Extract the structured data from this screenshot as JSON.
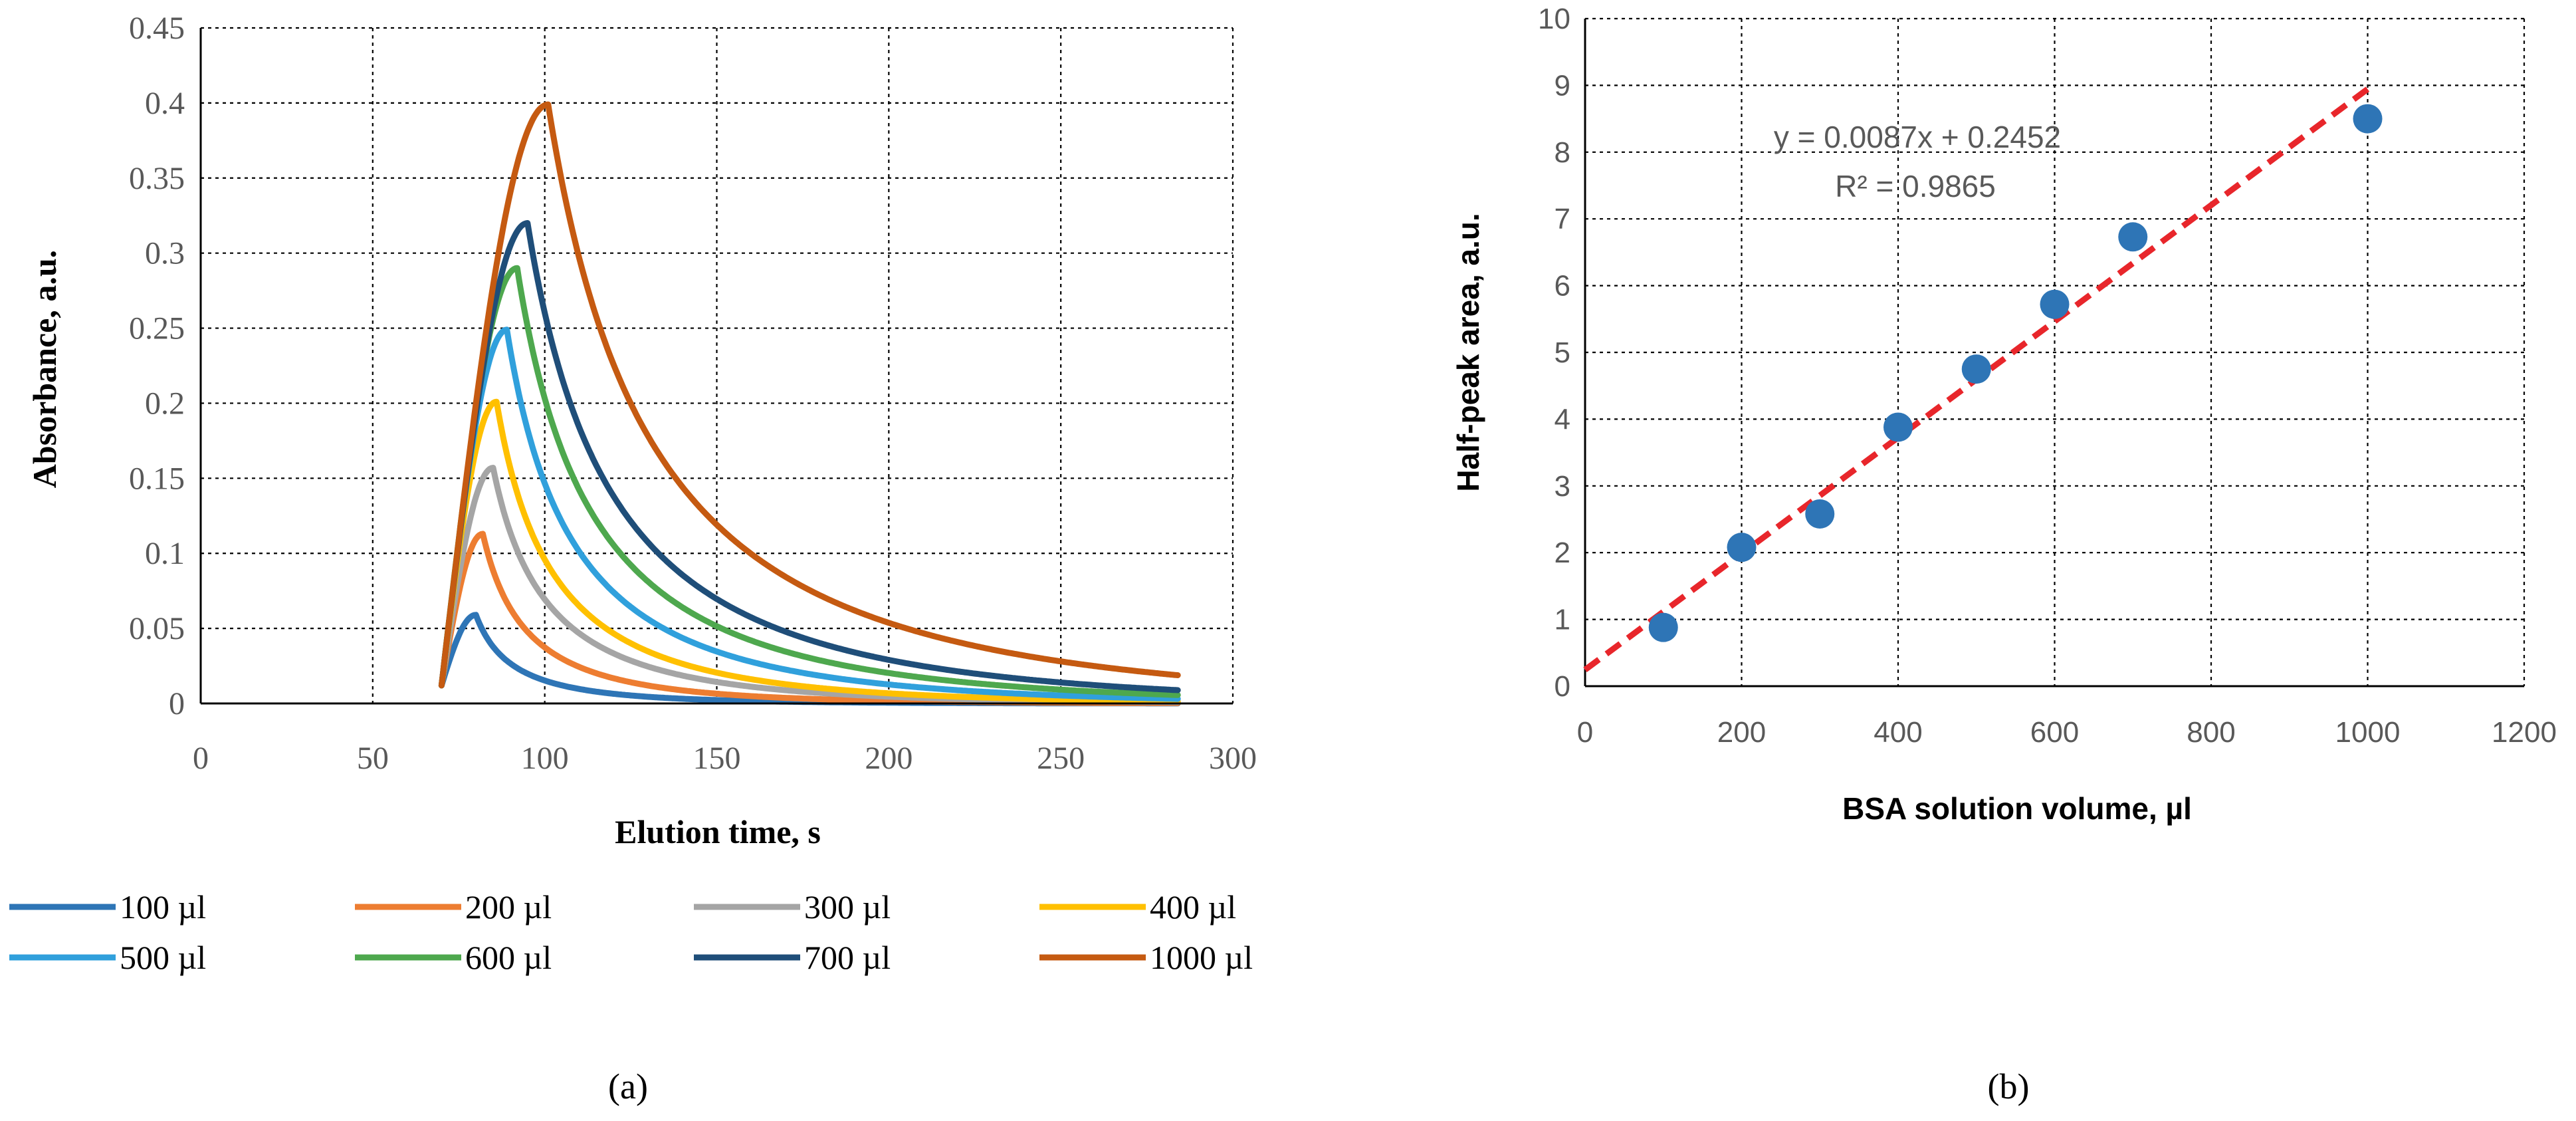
{
  "chart_data": [
    {
      "type": "line",
      "caption": "(a)",
      "xlabel": "Elution time, s",
      "ylabel": "Absorbance, a.u.",
      "xlim": [
        0,
        300
      ],
      "ylim": [
        0,
        0.45
      ],
      "x_ticks": [
        "0",
        "50",
        "100",
        "150",
        "200",
        "250",
        "300"
      ],
      "y_ticks": [
        "0",
        "0.05",
        "0.1",
        "0.15",
        "0.2",
        "0.25",
        "0.3",
        "0.35",
        "0.4",
        "0.45"
      ],
      "grid": true,
      "legend_position": "bottom",
      "series": [
        {
          "name": "100 µl",
          "color": "#2E75B6",
          "start_time": 70,
          "peak_time": 80,
          "peak_value": 0.059
        },
        {
          "name": "200 µl",
          "color": "#ED7D31",
          "start_time": 70,
          "peak_time": 82,
          "peak_value": 0.113
        },
        {
          "name": "300 µl",
          "color": "#A5A5A5",
          "start_time": 70,
          "peak_time": 85,
          "peak_value": 0.157
        },
        {
          "name": "400 µl",
          "color": "#FFC000",
          "start_time": 70,
          "peak_time": 86,
          "peak_value": 0.201
        },
        {
          "name": "500 µl",
          "color": "#30A0DC",
          "start_time": 70,
          "peak_time": 89,
          "peak_value": 0.249
        },
        {
          "name": "600 µl",
          "color": "#4EA84E",
          "start_time": 70,
          "peak_time": 92,
          "peak_value": 0.29
        },
        {
          "name": "700 µl",
          "color": "#1F4E79",
          "start_time": 70,
          "peak_time": 95,
          "peak_value": 0.32
        },
        {
          "name": "1000 µl",
          "color": "#C55A11",
          "start_time": 70,
          "peak_time": 101,
          "peak_value": 0.399
        }
      ]
    },
    {
      "type": "scatter",
      "caption": "(b)",
      "xlabel": "BSA solution volume, µl",
      "ylabel": "Half-peak area, a.u.",
      "xlim": [
        0,
        1200
      ],
      "ylim": [
        0,
        10
      ],
      "x_ticks": [
        "0",
        "200",
        "400",
        "600",
        "800",
        "1000",
        "1200"
      ],
      "y_ticks": [
        "0",
        "1",
        "2",
        "3",
        "4",
        "5",
        "6",
        "7",
        "8",
        "9",
        "10"
      ],
      "grid": true,
      "x": [
        100,
        200,
        300,
        400,
        500,
        600,
        700,
        1000
      ],
      "y": [
        0.88,
        2.08,
        2.58,
        3.88,
        4.75,
        5.72,
        6.73,
        8.5
      ],
      "point_color": "#2E75B6",
      "trendline": {
        "slope": 0.0087,
        "intercept": 0.2452,
        "x_range": [
          0,
          1000
        ],
        "color": "#E8262B",
        "equation": "y = 0.0087x + 0.2452",
        "r_squared": "R² = 0.9865"
      }
    }
  ]
}
